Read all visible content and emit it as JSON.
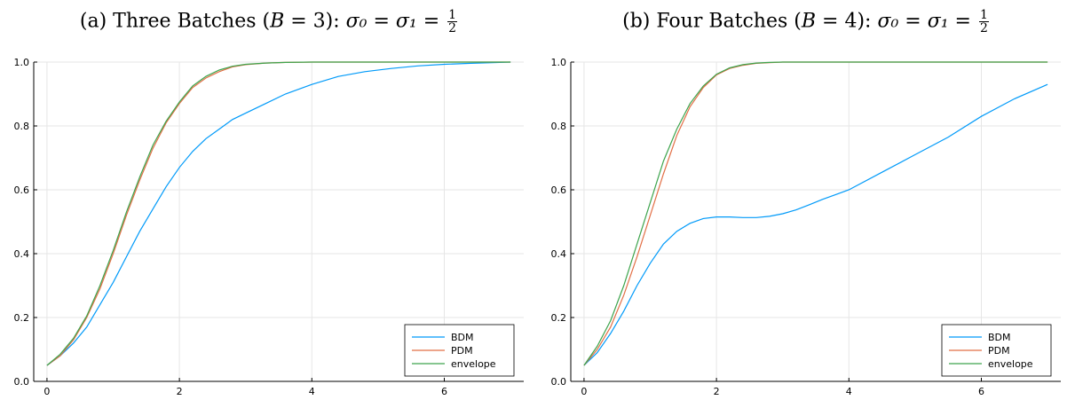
{
  "chart_data": [
    {
      "type": "line",
      "title_prefix": "(a) Three Batches (",
      "title_b": "B",
      "title_eq": " = 3): ",
      "title_sigma": "σ₀ = σ₁ = ",
      "title_num": "1",
      "title_den": "2",
      "xlabel": "",
      "ylabel": "",
      "xlim": [
        -0.2,
        7.2
      ],
      "ylim": [
        0.0,
        1.0
      ],
      "x_ticks": [
        "0",
        "2",
        "4",
        "6"
      ],
      "y_ticks": [
        "0.0",
        "0.2",
        "0.4",
        "0.6",
        "0.8",
        "1.0"
      ],
      "grid": true,
      "legend_position": "bottom-right",
      "series": [
        {
          "name": "BDM",
          "color": "#009af9",
          "x": [
            0,
            0.2,
            0.4,
            0.6,
            0.8,
            1.0,
            1.2,
            1.4,
            1.6,
            1.8,
            2.0,
            2.2,
            2.4,
            2.6,
            2.8,
            3.0,
            3.3,
            3.6,
            4.0,
            4.4,
            4.8,
            5.2,
            5.6,
            6.0,
            6.4,
            7.0
          ],
          "y": [
            0.05,
            0.08,
            0.12,
            0.17,
            0.24,
            0.31,
            0.39,
            0.47,
            0.54,
            0.61,
            0.67,
            0.72,
            0.76,
            0.79,
            0.82,
            0.84,
            0.87,
            0.9,
            0.93,
            0.955,
            0.97,
            0.98,
            0.988,
            0.993,
            0.996,
            1.0
          ]
        },
        {
          "name": "PDM",
          "color": "#e26f46",
          "x": [
            0,
            0.2,
            0.4,
            0.6,
            0.8,
            1.0,
            1.2,
            1.4,
            1.6,
            1.8,
            2.0,
            2.2,
            2.4,
            2.6,
            2.8,
            3.0,
            3.3,
            3.6,
            4.0,
            5.0,
            6.0,
            7.0
          ],
          "y": [
            0.05,
            0.08,
            0.13,
            0.2,
            0.29,
            0.4,
            0.52,
            0.63,
            0.73,
            0.81,
            0.87,
            0.92,
            0.95,
            0.97,
            0.985,
            0.992,
            0.997,
            0.999,
            1.0,
            1.0,
            1.0,
            1.0
          ]
        },
        {
          "name": "envelope",
          "color": "#3da44d",
          "x": [
            0,
            0.2,
            0.4,
            0.6,
            0.8,
            1.0,
            1.2,
            1.4,
            1.6,
            1.8,
            2.0,
            2.2,
            2.4,
            2.6,
            2.8,
            3.0,
            3.3,
            3.6,
            4.0,
            5.0,
            6.0,
            7.0
          ],
          "y": [
            0.05,
            0.085,
            0.135,
            0.205,
            0.3,
            0.41,
            0.53,
            0.64,
            0.74,
            0.815,
            0.875,
            0.925,
            0.955,
            0.975,
            0.987,
            0.993,
            0.997,
            0.999,
            1.0,
            1.0,
            1.0,
            1.0
          ]
        }
      ]
    },
    {
      "type": "line",
      "title_prefix": "(b) Four Batches (",
      "title_b": "B",
      "title_eq": " = 4): ",
      "title_sigma": "σ₀ = σ₁ = ",
      "title_num": "1",
      "title_den": "2",
      "xlabel": "",
      "ylabel": "",
      "xlim": [
        -0.2,
        7.2
      ],
      "ylim": [
        0.0,
        1.0
      ],
      "x_ticks": [
        "0",
        "2",
        "4",
        "6"
      ],
      "y_ticks": [
        "0.0",
        "0.2",
        "0.4",
        "0.6",
        "0.8",
        "1.0"
      ],
      "grid": true,
      "legend_position": "bottom-right",
      "series": [
        {
          "name": "BDM",
          "color": "#009af9",
          "x": [
            0,
            0.2,
            0.4,
            0.6,
            0.8,
            1.0,
            1.2,
            1.4,
            1.6,
            1.8,
            2.0,
            2.2,
            2.4,
            2.6,
            2.8,
            3.0,
            3.2,
            3.4,
            3.6,
            3.8,
            4.0,
            4.5,
            5.0,
            5.5,
            6.0,
            6.5,
            7.0
          ],
          "y": [
            0.05,
            0.09,
            0.15,
            0.22,
            0.3,
            0.37,
            0.43,
            0.47,
            0.495,
            0.51,
            0.515,
            0.515,
            0.513,
            0.513,
            0.517,
            0.525,
            0.537,
            0.553,
            0.57,
            0.585,
            0.6,
            0.655,
            0.71,
            0.765,
            0.83,
            0.885,
            0.93
          ]
        },
        {
          "name": "PDM",
          "color": "#e26f46",
          "x": [
            0,
            0.2,
            0.4,
            0.6,
            0.8,
            1.0,
            1.2,
            1.4,
            1.6,
            1.8,
            2.0,
            2.2,
            2.4,
            2.6,
            2.8,
            3.0,
            4.0,
            5.0,
            6.0,
            7.0
          ],
          "y": [
            0.05,
            0.1,
            0.17,
            0.27,
            0.39,
            0.52,
            0.65,
            0.77,
            0.86,
            0.92,
            0.96,
            0.98,
            0.99,
            0.996,
            0.998,
            1.0,
            1.0,
            1.0,
            1.0,
            1.0
          ]
        },
        {
          "name": "envelope",
          "color": "#3da44d",
          "x": [
            0,
            0.2,
            0.4,
            0.6,
            0.8,
            1.0,
            1.2,
            1.4,
            1.6,
            1.8,
            2.0,
            2.2,
            2.4,
            2.6,
            2.8,
            3.0,
            4.0,
            5.0,
            6.0,
            7.0
          ],
          "y": [
            0.05,
            0.11,
            0.19,
            0.3,
            0.43,
            0.56,
            0.69,
            0.79,
            0.87,
            0.925,
            0.962,
            0.982,
            0.992,
            0.997,
            0.999,
            1.0,
            1.0,
            1.0,
            1.0,
            1.0
          ]
        }
      ]
    }
  ]
}
